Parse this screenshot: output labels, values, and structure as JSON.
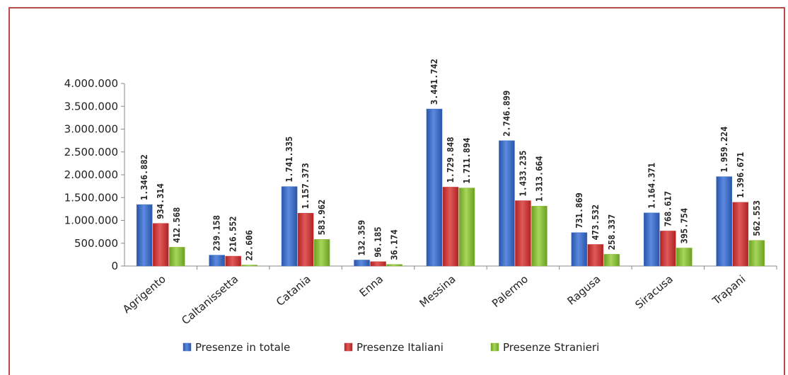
{
  "chart_data": {
    "type": "bar",
    "title": "",
    "xlabel": "",
    "ylabel": "",
    "ylim": [
      0,
      4000000
    ],
    "y_ticks": [
      "0",
      "500.000",
      "1.000.000",
      "1.500.000",
      "2.000.000",
      "2.500.000",
      "3.000.000",
      "3.500.000",
      "4.000.000"
    ],
    "grid": false,
    "legend_position": "bottom",
    "categories": [
      "Agrigento",
      "Caltanissetta",
      "Catania",
      "Enna",
      "Messina",
      "Palermo",
      "Ragusa",
      "Siracusa",
      "Trapani"
    ],
    "series": [
      {
        "name": "Presenze in totale",
        "color": "#3f6fc8",
        "values": [
          1346882,
          239158,
          1741335,
          132359,
          3441742,
          2746899,
          731869,
          1164371,
          1959224
        ],
        "labels": [
          "1.346.882",
          "239.158",
          "1.741.335",
          "132.359",
          "3.441.742",
          "2.746.899",
          "731.869",
          "1.164.371",
          "1.959.224"
        ]
      },
      {
        "name": "Presenze Italiani",
        "color": "#d23a3a",
        "values": [
          934314,
          216552,
          1157373,
          96185,
          1729848,
          1433235,
          473532,
          768617,
          1396671
        ],
        "labels": [
          "934.314",
          "216.552",
          "1.157.373",
          "96.185",
          "1.729.848",
          "1.433.235",
          "473.532",
          "768.617",
          "1.396.671"
        ]
      },
      {
        "name": "Presenze Stranieri",
        "color": "#8cbf3a",
        "values": [
          412568,
          22606,
          583962,
          36174,
          1711894,
          1313664,
          258337,
          395754,
          562553
        ],
        "labels": [
          "412.568",
          "22.606",
          "583.962",
          "36.174",
          "1.711.894",
          "1.313.664",
          "258.337",
          "395.754",
          "562.553"
        ]
      }
    ]
  }
}
